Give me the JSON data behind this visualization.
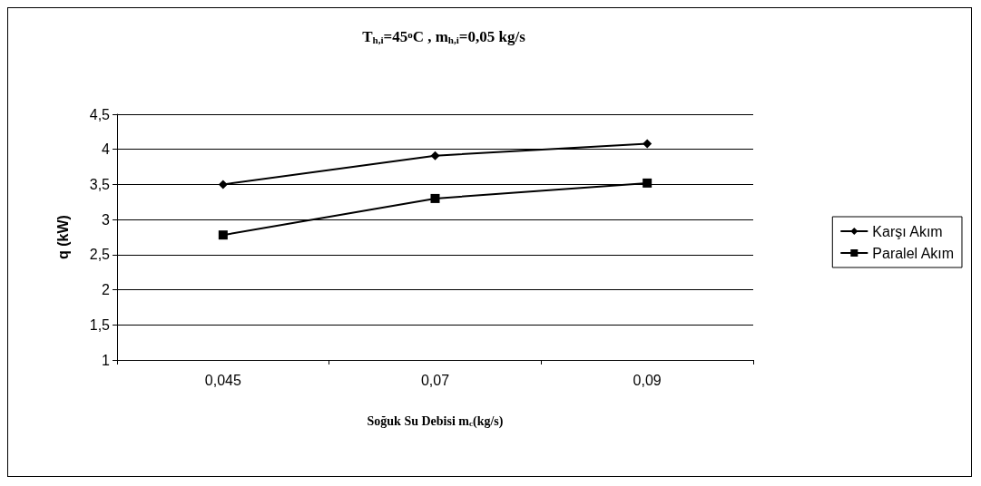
{
  "chart_data": {
    "type": "line",
    "title": "T$_{h,i}$=45$^{o}$C , m$_{h,i}$=0,05 kg/s",
    "xlabel": "Soğuk Su Debisi m$_{c}$(kg/s)",
    "ylabel": "q (kW)",
    "categories": [
      "0,045",
      "0,07",
      "0,09"
    ],
    "series": [
      {
        "name": "Karşı Akım",
        "color": "#000000",
        "marker": "diamond",
        "values": [
          3.5,
          3.91,
          4.08
        ]
      },
      {
        "name": "Paralel Akım",
        "color": "#000000",
        "marker": "square",
        "values": [
          2.78,
          3.3,
          3.52
        ]
      }
    ],
    "ylim": [
      1,
      4.5
    ],
    "yticks": [
      1,
      {
        "value": 1.5,
        "label": "1,5"
      },
      2,
      {
        "value": 2.5,
        "label": "2,5"
      },
      3,
      {
        "value": 3.5,
        "label": "3,5"
      },
      4,
      {
        "value": 4.5,
        "label": "4,5"
      }
    ],
    "grid": "y",
    "legend": "right",
    "line_style": "solid"
  }
}
